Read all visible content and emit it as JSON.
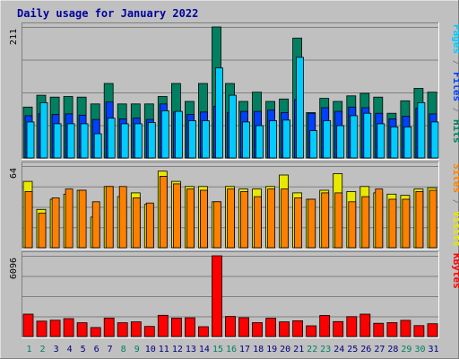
{
  "chart_data": {
    "type": "bar",
    "title": "Daily usage for January 2022",
    "days": [
      "1",
      "2",
      "3",
      "4",
      "5",
      "6",
      "7",
      "8",
      "9",
      "10",
      "11",
      "12",
      "13",
      "14",
      "15",
      "16",
      "17",
      "18",
      "19",
      "20",
      "21",
      "22",
      "23",
      "24",
      "25",
      "26",
      "27",
      "28",
      "29",
      "30",
      "31"
    ],
    "weekend_days": [
      "1",
      "2",
      "8",
      "9",
      "15",
      "16",
      "22",
      "23",
      "29",
      "30"
    ],
    "panels": [
      {
        "id": "top",
        "ymax_label": "211",
        "ymax": 211,
        "legend": [
          {
            "text": "Pages",
            "color": "#00ccff"
          },
          {
            "text": " / ",
            "color": "#808080"
          },
          {
            "text": "Files",
            "color": "#0040ff"
          },
          {
            "text": " / ",
            "color": "#808080"
          },
          {
            "text": "Hits",
            "color": "#008060"
          }
        ],
        "series": [
          {
            "name": "Hits",
            "color": "#008060",
            "values": [
              82,
              101,
              98,
              99,
              98,
              87,
              120,
              87,
              87,
              87,
              99,
              120,
              91,
              120,
              211,
              120,
              91,
              106,
              91,
              95,
              193,
              73,
              96,
              91,
              100,
              104,
              98,
              72,
              92,
              112,
              106
            ]
          },
          {
            "name": "Files",
            "color": "#0040ff",
            "values": [
              68,
              71,
              70,
              71,
              69,
              62,
              90,
              63,
              64,
              62,
              87,
              74,
              70,
              74,
              83,
              73,
              75,
              75,
              77,
              73,
              94,
              72,
              81,
              75,
              82,
              81,
              72,
              63,
              67,
              80,
              71
            ]
          },
          {
            "name": "Pages",
            "color": "#00ccff",
            "values": [
              58,
              89,
              55,
              55,
              55,
              39,
              64,
              55,
              55,
              57,
              76,
              75,
              60,
              60,
              145,
              101,
              58,
              52,
              60,
              61,
              162,
              44,
              60,
              52,
              68,
              72,
              55,
              50,
              50,
              89,
              58
            ]
          }
        ]
      },
      {
        "id": "middle",
        "ymax_label": "64",
        "ymax": 64,
        "legend": [
          {
            "text": "Sites",
            "color": "#ff8000"
          },
          {
            "text": " / ",
            "color": "#808080"
          },
          {
            "text": "Visits",
            "color": "#e8e800"
          }
        ],
        "series": [
          {
            "name": "Visits",
            "color": "#e8e800",
            "values": [
              52,
              30,
              38,
              42,
              45,
              24,
              48,
              40,
              43,
              34,
              60,
              52,
              48,
              48,
              36,
              48,
              46,
              46,
              48,
              57,
              43,
              38,
              45,
              58,
              44,
              48,
              43,
              42,
              41,
              46,
              47
            ]
          },
          {
            "name": "Sites",
            "color": "#ff8000",
            "values": [
              44,
              27,
              39,
              46,
              45,
              36,
              48,
              48,
              39,
              35,
              56,
              50,
              46,
              45,
              36,
              46,
              44,
              40,
              46,
              46,
              39,
              38,
              43,
              43,
              36,
              40,
              46,
              38,
              38,
              44,
              45
            ]
          }
        ]
      },
      {
        "id": "bottom",
        "ymax_label": "6096",
        "ymax": 6096,
        "legend": [
          {
            "text": "KBytes",
            "color": "#ff0000"
          }
        ],
        "series": [
          {
            "name": "KBytes",
            "color": "#ff0000",
            "values": [
              1696,
              1168,
              1230,
              1352,
              1040,
              687,
              1394,
              1043,
              1113,
              765,
              1606,
              1395,
              1417,
              744,
              6096,
              1520,
              1424,
              1052,
              1385,
              1110,
              1190,
              816,
              1590,
              1134,
              1502,
              1694,
              1000,
              1052,
              1224,
              828,
              971
            ]
          }
        ]
      }
    ]
  }
}
